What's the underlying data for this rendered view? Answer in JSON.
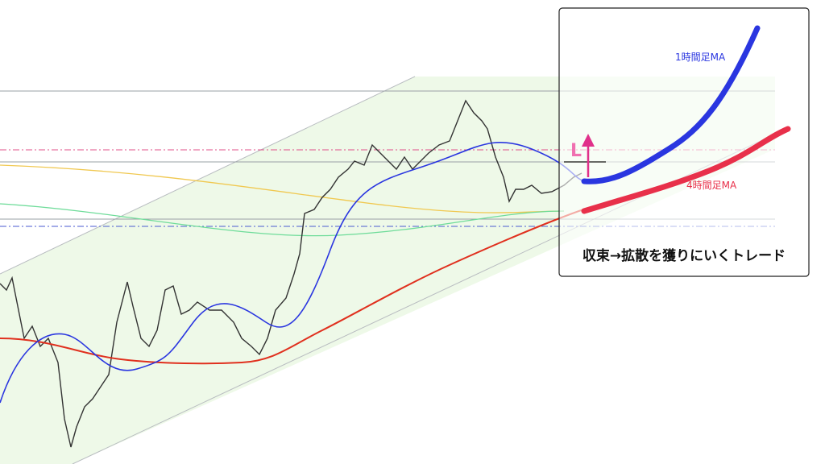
{
  "annotations": {
    "ma_1h": "1時間足MA",
    "ma_4h": "4時間足MA",
    "caption": "収束→拡散を獲りにいくトレード",
    "entry": "L"
  }
}
